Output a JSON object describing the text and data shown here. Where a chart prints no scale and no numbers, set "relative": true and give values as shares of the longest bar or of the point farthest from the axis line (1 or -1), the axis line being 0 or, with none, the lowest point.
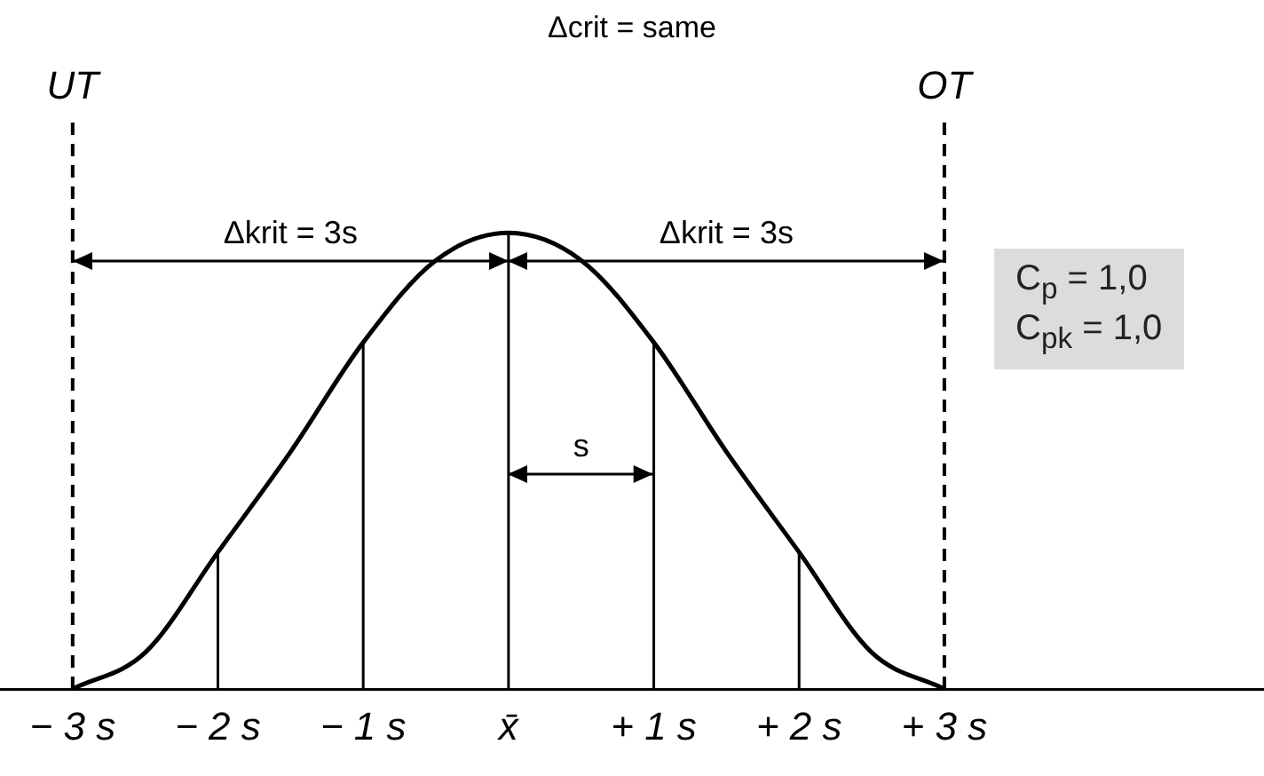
{
  "chart_data": {
    "type": "line",
    "title": "Δcrit = same",
    "relative": true,
    "marker": "none",
    "grid": false,
    "legend": false,
    "tick_labels": "x",
    "x": [
      -3,
      -2.5,
      -2,
      -1.5,
      -1,
      -0.5,
      0,
      0.5,
      1,
      1.5,
      2,
      2.5,
      3
    ],
    "series": [
      {
        "color": "#000000",
        "values": [
          0,
          0.08,
          0.3,
          0.52,
          0.76,
          0.94,
          1,
          0.94,
          0.76,
          0.52,
          0.3,
          0.08,
          0
        ]
      }
    ],
    "xlim": [
      -3.5,
      5.2
    ],
    "xticks": [
      {
        "value": -3,
        "label": "− 3 s"
      },
      {
        "value": -2,
        "label": "− 2 s"
      },
      {
        "value": -1,
        "label": "− 1 s"
      },
      {
        "value": 0,
        "label": "x̄"
      },
      {
        "value": 1,
        "label": "+ 1 s"
      },
      {
        "value": 2,
        "label": "+ 2 s"
      },
      {
        "value": 3,
        "label": "+ 3 s"
      }
    ],
    "ref_lines": [
      {
        "axis": "x",
        "value": -3,
        "label": "UT",
        "line_style": "dashed"
      },
      {
        "axis": "x",
        "value": -2
      },
      {
        "axis": "x",
        "value": -1
      },
      {
        "axis": "x",
        "value": 0
      },
      {
        "axis": "x",
        "value": 1
      },
      {
        "axis": "x",
        "value": 2
      },
      {
        "axis": "x",
        "value": 3,
        "label": "OT",
        "line_style": "dashed"
      }
    ],
    "annotations": [
      "Δkrit = 3s",
      "Δkrit = 3s",
      "s",
      "C$_{p}$ = 1,0",
      "C$_{pk}$ = 1,0"
    ]
  }
}
